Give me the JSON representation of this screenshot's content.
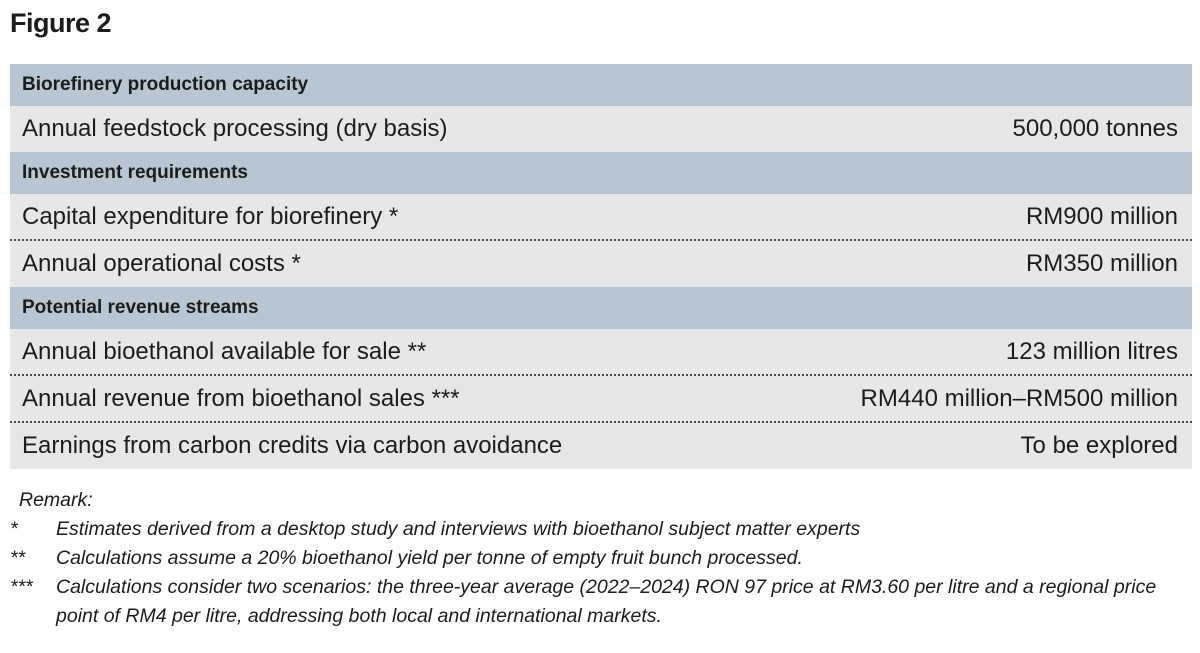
{
  "figure_title": "Figure 2",
  "sections": [
    {
      "heading": "Biorefinery production capacity",
      "rows": [
        {
          "label": "Annual feedstock processing (dry basis)",
          "value": "500,000 tonnes"
        }
      ]
    },
    {
      "heading": "Investment requirements",
      "rows": [
        {
          "label": "Capital expenditure for biorefinery *",
          "value": "RM900 million"
        },
        {
          "label": "Annual operational costs *",
          "value": "RM350 million"
        }
      ]
    },
    {
      "heading": "Potential revenue streams",
      "rows": [
        {
          "label": "Annual bioethanol available for sale **",
          "value": "123 million litres"
        },
        {
          "label": "Annual revenue from bioethanol sales ***",
          "value": "RM440 million–RM500 million"
        },
        {
          "label": "Earnings from carbon credits via carbon avoidance",
          "value": "To be explored"
        }
      ]
    }
  ],
  "remarks": {
    "title": "Remark:",
    "notes": [
      {
        "mark": "*",
        "text": "Estimates derived from a desktop study and interviews with bioethanol subject matter experts"
      },
      {
        "mark": "**",
        "text": "Calculations assume a 20% bioethanol yield per tonne of empty fruit bunch processed."
      },
      {
        "mark": "***",
        "text": "Calculations consider two scenarios: the three-year average (2022–2024) RON 97 price at RM3.60 per litre and a regional price point of RM4 per litre, addressing both local and international markets."
      }
    ]
  }
}
